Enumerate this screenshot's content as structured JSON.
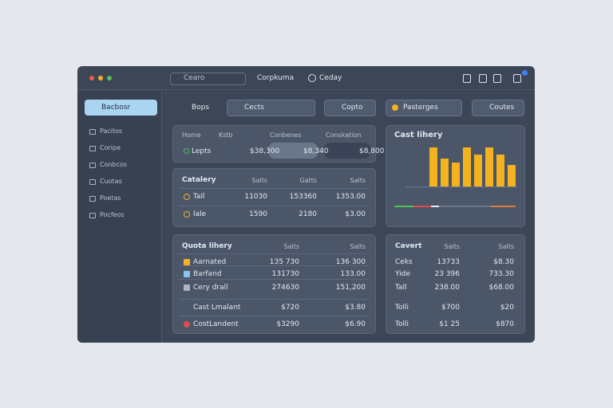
{
  "titlebar": {
    "search": "Cearo",
    "tabs": [
      "Corpkuma",
      "Ceday"
    ]
  },
  "sidebar": {
    "items": [
      "Bacbosr",
      "Pacitos",
      "Coripe",
      "Conbcos",
      "Cuotas",
      "Poetas",
      "Pocfeos"
    ]
  },
  "toolbar": {
    "items": [
      "Bops",
      "Cects",
      "Copto",
      "Pasterges",
      "Coutes"
    ]
  },
  "summary": {
    "headers": [
      "Home",
      "Kstb",
      "Conbenes",
      "Conskation"
    ],
    "row": [
      "Lepts",
      "$38,300",
      "$8,340",
      "$8,800"
    ]
  },
  "catalog": {
    "headers": [
      "Catalery",
      "Salts",
      "Gatts",
      "Salts"
    ],
    "rows": [
      [
        "Tall",
        "11030",
        "153360",
        "1353.00"
      ],
      [
        "lale",
        "1590",
        "2180",
        "$3.00"
      ]
    ]
  },
  "quota": {
    "headers": [
      "Quota lihery",
      "Salts",
      "Salts"
    ],
    "rows": [
      [
        "Aarnated",
        "135 730",
        "136 300"
      ],
      [
        "Barfand",
        "131730",
        "133.00"
      ],
      [
        "Cery drall",
        "274630",
        "151,200"
      ],
      [
        "Cast Lmalant",
        "$720",
        "$3.80"
      ],
      [
        "CostLandent",
        "$3290",
        "$6.90"
      ]
    ]
  },
  "chart": {
    "title": "Cast lihery",
    "values": [
      9,
      6.5,
      5.5,
      9,
      7.5,
      9,
      7.5,
      5
    ],
    "ylim": [
      0,
      10
    ],
    "color": "#f5b21f"
  },
  "convert": {
    "headers": [
      "Cavert",
      "Salts",
      "Salts"
    ],
    "rows": [
      [
        "Ceks",
        "13733",
        "$8.30"
      ],
      [
        "Yide",
        "23 396",
        "733.30"
      ],
      [
        "Tall",
        "238.00",
        "$68.00"
      ],
      [
        "Tolli",
        "$700",
        "$20"
      ],
      [
        "Tolli",
        "$1 25",
        "$870"
      ]
    ]
  }
}
